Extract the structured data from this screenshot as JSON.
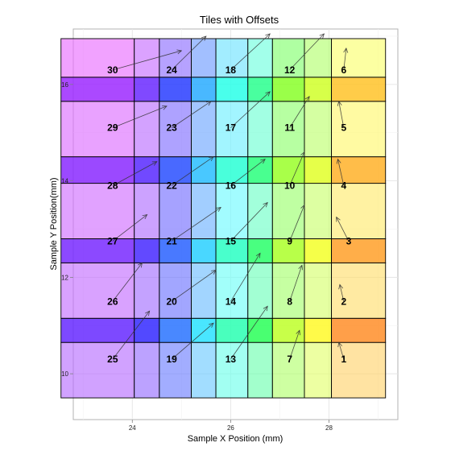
{
  "chart_data": {
    "type": "tile",
    "title": "Tiles with Offsets",
    "xlabel": "Sample X Position (mm)",
    "ylabel": "Sample Y Position(mm)",
    "xlim": [
      22.8,
      29.4
    ],
    "ylim": [
      9.05,
      17.15
    ],
    "x_ticks": [
      24,
      26,
      28
    ],
    "y_ticks": [
      10,
      12,
      14,
      16
    ],
    "grid": true,
    "columns": [
      {
        "x0": 22.55,
        "x1": 24.04,
        "hue": 274
      },
      {
        "x0": 24.04,
        "x1": 24.55,
        "hue": 260
      },
      {
        "x0": 24.55,
        "x1": 25.2,
        "hue": 236
      },
      {
        "x0": 25.2,
        "x1": 25.7,
        "hue": 205
      },
      {
        "x0": 25.7,
        "x1": 26.35,
        "hue": 175
      },
      {
        "x0": 26.35,
        "x1": 26.85,
        "hue": 150
      },
      {
        "x0": 26.85,
        "x1": 27.5,
        "hue": 95
      },
      {
        "x0": 27.5,
        "x1": 28.05,
        "hue": 75
      },
      {
        "x0": 28.05,
        "x1": 29.15,
        "hue": 45
      }
    ],
    "rows_y": [
      9.5,
      10.65,
      11.15,
      12.3,
      12.8,
      13.95,
      14.5,
      15.65,
      16.15,
      16.95
    ],
    "points": [
      {
        "label": "1",
        "x": 28.3,
        "y": 10.3,
        "dx": -0.1,
        "dy": 0.35
      },
      {
        "label": "2",
        "x": 28.3,
        "y": 11.5,
        "dx": -0.08,
        "dy": 0.35
      },
      {
        "label": "3",
        "x": 28.4,
        "y": 12.75,
        "dx": -0.25,
        "dy": 0.5
      },
      {
        "label": "4",
        "x": 28.3,
        "y": 13.9,
        "dx": -0.12,
        "dy": 0.55
      },
      {
        "label": "5",
        "x": 28.3,
        "y": 15.1,
        "dx": -0.1,
        "dy": 0.55
      },
      {
        "label": "6",
        "x": 28.3,
        "y": 16.3,
        "dx": 0.05,
        "dy": 0.45
      },
      {
        "label": "7",
        "x": 27.2,
        "y": 10.3,
        "dx": 0.2,
        "dy": 0.6
      },
      {
        "label": "8",
        "x": 27.2,
        "y": 11.5,
        "dx": 0.25,
        "dy": 0.75
      },
      {
        "label": "9",
        "x": 27.2,
        "y": 12.75,
        "dx": 0.3,
        "dy": 0.75
      },
      {
        "label": "10",
        "x": 27.2,
        "y": 13.9,
        "dx": 0.3,
        "dy": 0.7
      },
      {
        "label": "11",
        "x": 27.2,
        "y": 15.1,
        "dx": 0.4,
        "dy": 0.65
      },
      {
        "label": "12",
        "x": 27.2,
        "y": 16.3,
        "dx": 0.7,
        "dy": 0.75
      },
      {
        "label": "13",
        "x": 26.0,
        "y": 10.3,
        "dx": 0.75,
        "dy": 1.1
      },
      {
        "label": "14",
        "x": 26.0,
        "y": 11.5,
        "dx": 0.6,
        "dy": 1.0
      },
      {
        "label": "15",
        "x": 26.0,
        "y": 12.75,
        "dx": 0.75,
        "dy": 0.8
      },
      {
        "label": "16",
        "x": 26.0,
        "y": 13.9,
        "dx": 0.7,
        "dy": 0.55
      },
      {
        "label": "17",
        "x": 26.0,
        "y": 15.1,
        "dx": 0.8,
        "dy": 0.75
      },
      {
        "label": "18",
        "x": 26.0,
        "y": 16.3,
        "dx": 0.8,
        "dy": 0.75
      },
      {
        "label": "19",
        "x": 24.8,
        "y": 10.3,
        "dx": 0.85,
        "dy": 0.75
      },
      {
        "label": "20",
        "x": 24.8,
        "y": 11.5,
        "dx": 0.9,
        "dy": 0.65
      },
      {
        "label": "21",
        "x": 24.8,
        "y": 12.75,
        "dx": 1.0,
        "dy": 0.7
      },
      {
        "label": "22",
        "x": 24.8,
        "y": 13.9,
        "dx": 0.85,
        "dy": 0.6
      },
      {
        "label": "23",
        "x": 24.8,
        "y": 15.1,
        "dx": 0.8,
        "dy": 0.55
      },
      {
        "label": "24",
        "x": 24.8,
        "y": 16.3,
        "dx": 0.7,
        "dy": 0.7
      },
      {
        "label": "25",
        "x": 23.6,
        "y": 10.3,
        "dx": 0.75,
        "dy": 1.0
      },
      {
        "label": "26",
        "x": 23.6,
        "y": 11.5,
        "dx": 0.6,
        "dy": 0.8
      },
      {
        "label": "27",
        "x": 23.6,
        "y": 12.75,
        "dx": 0.7,
        "dy": 0.55
      },
      {
        "label": "28",
        "x": 23.6,
        "y": 13.9,
        "dx": 0.9,
        "dy": 0.5
      },
      {
        "label": "29",
        "x": 23.6,
        "y": 15.1,
        "dx": 1.1,
        "dy": 0.45
      },
      {
        "label": "30",
        "x": 23.6,
        "y": 16.3,
        "dx": 1.4,
        "dy": 0.4
      }
    ]
  }
}
